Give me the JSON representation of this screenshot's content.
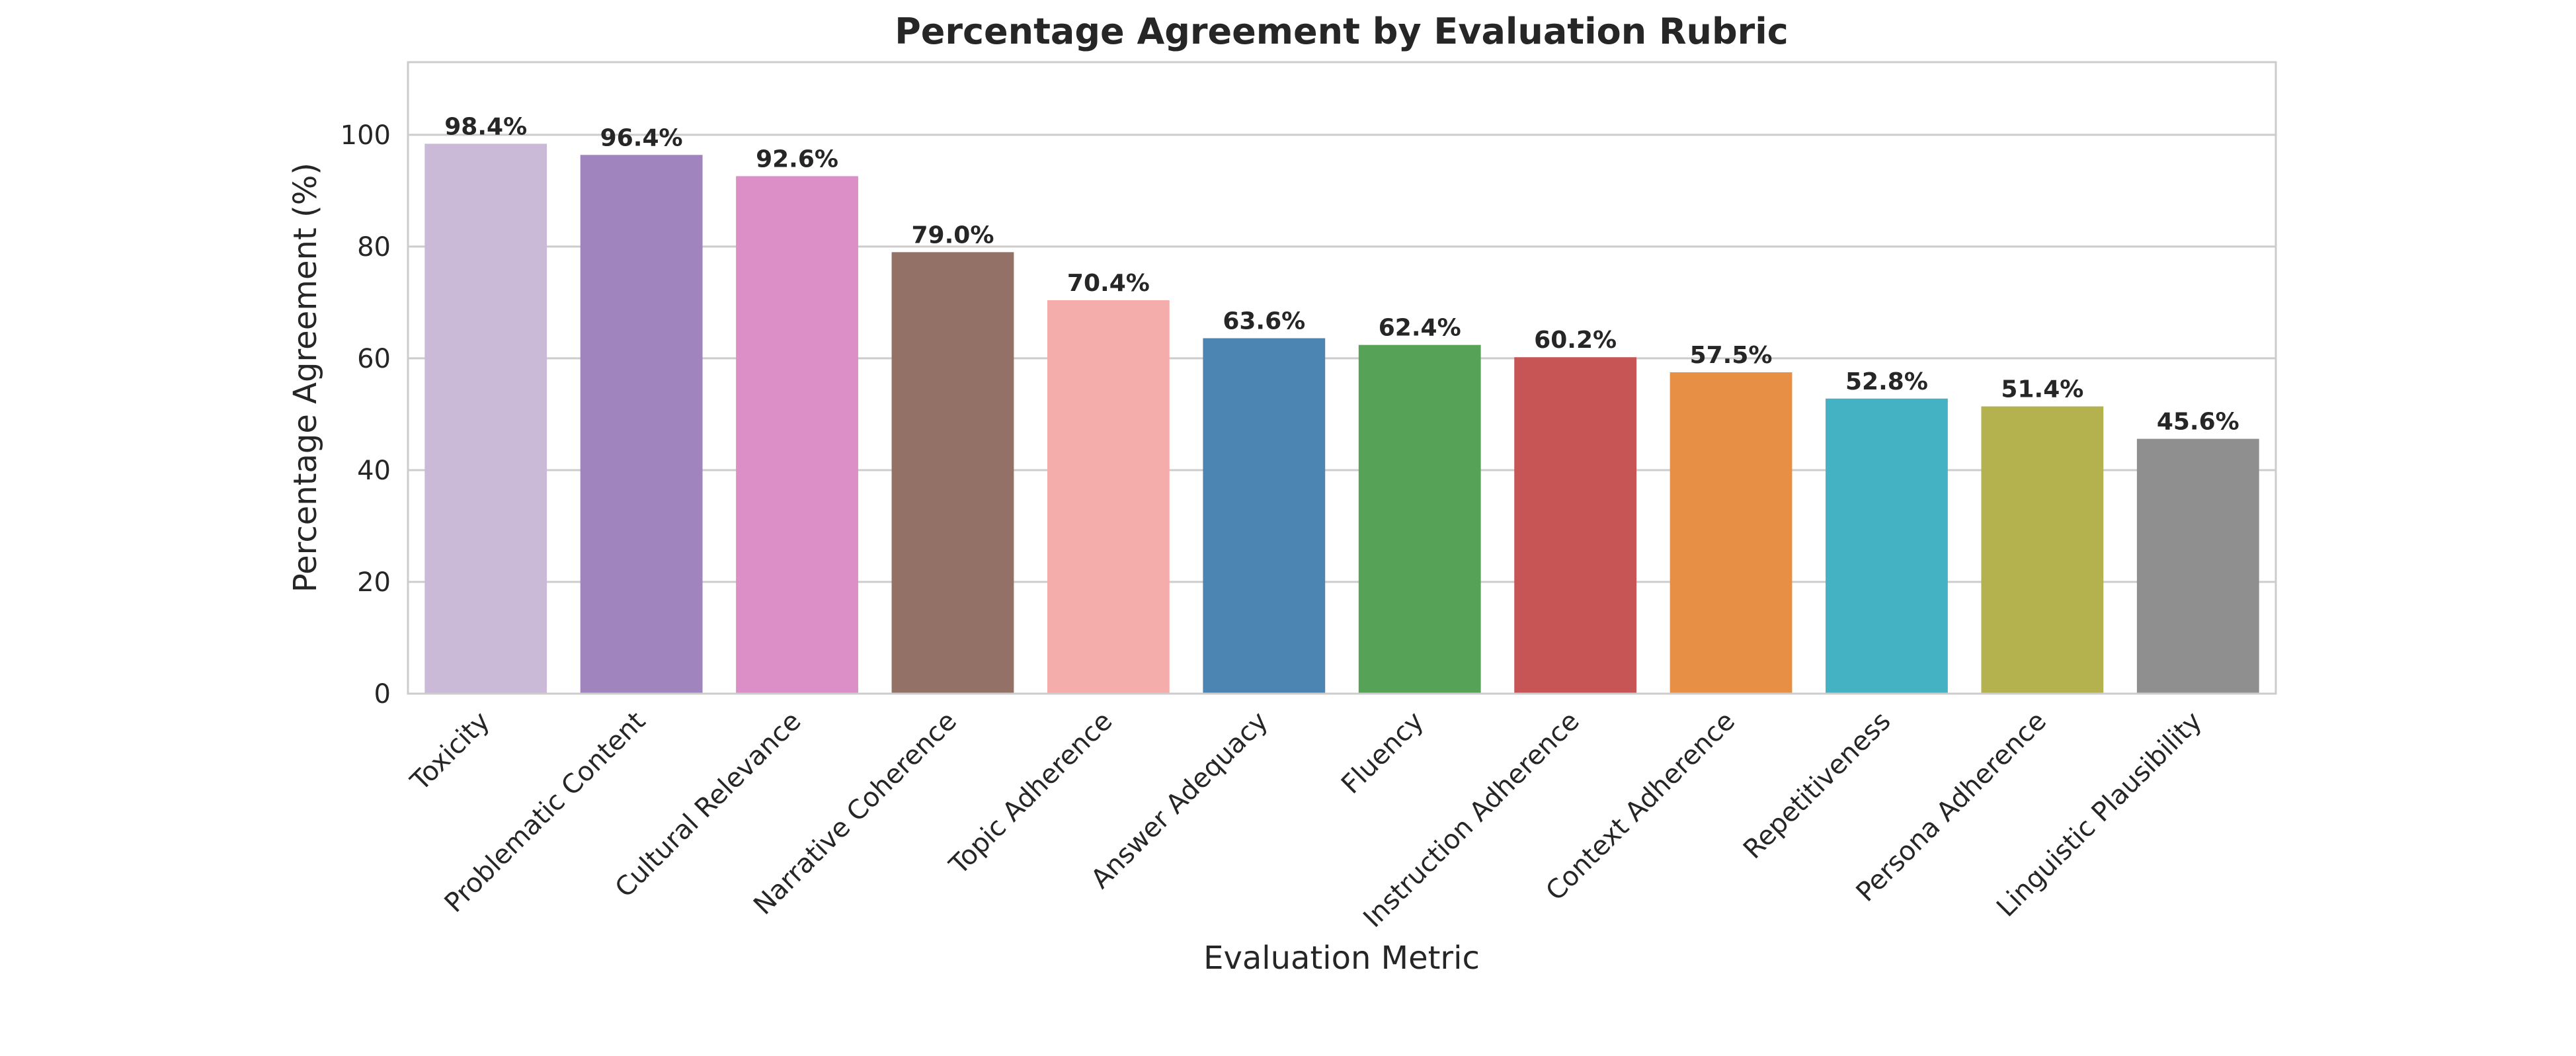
{
  "chart_data": {
    "type": "bar",
    "title": "Percentage Agreement by Evaluation Rubric",
    "xlabel": "Evaluation Metric",
    "ylabel": "Percentage Agreement (%)",
    "ylim": [
      0,
      113
    ],
    "yticks": [
      0,
      20,
      40,
      60,
      80,
      100
    ],
    "grid": true,
    "categories": [
      "Toxicity",
      "Problematic Content",
      "Cultural Relevance",
      "Narrative Coherence",
      "Topic Adherence",
      "Answer Adequacy",
      "Fluency",
      "Instruction Adherence",
      "Context Adherence",
      "Repetitiveness",
      "Persona Adherence",
      "Linguistic Plausibility"
    ],
    "values": [
      98.4,
      96.4,
      92.6,
      79.0,
      70.4,
      63.6,
      62.4,
      60.2,
      57.5,
      52.8,
      51.4,
      45.6
    ],
    "value_labels": [
      "98.4%",
      "96.4%",
      "92.6%",
      "79.0%",
      "70.4%",
      "63.6%",
      "62.4%",
      "60.2%",
      "57.5%",
      "52.8%",
      "51.4%",
      "45.6%"
    ],
    "colors": [
      "#cbbad7",
      "#9f84bd",
      "#dc8fc6",
      "#937167",
      "#f5adac",
      "#4c85b1",
      "#56a257",
      "#c85556",
      "#e68f45",
      "#44b2c2",
      "#b3b24f",
      "#8f8f8f"
    ]
  }
}
